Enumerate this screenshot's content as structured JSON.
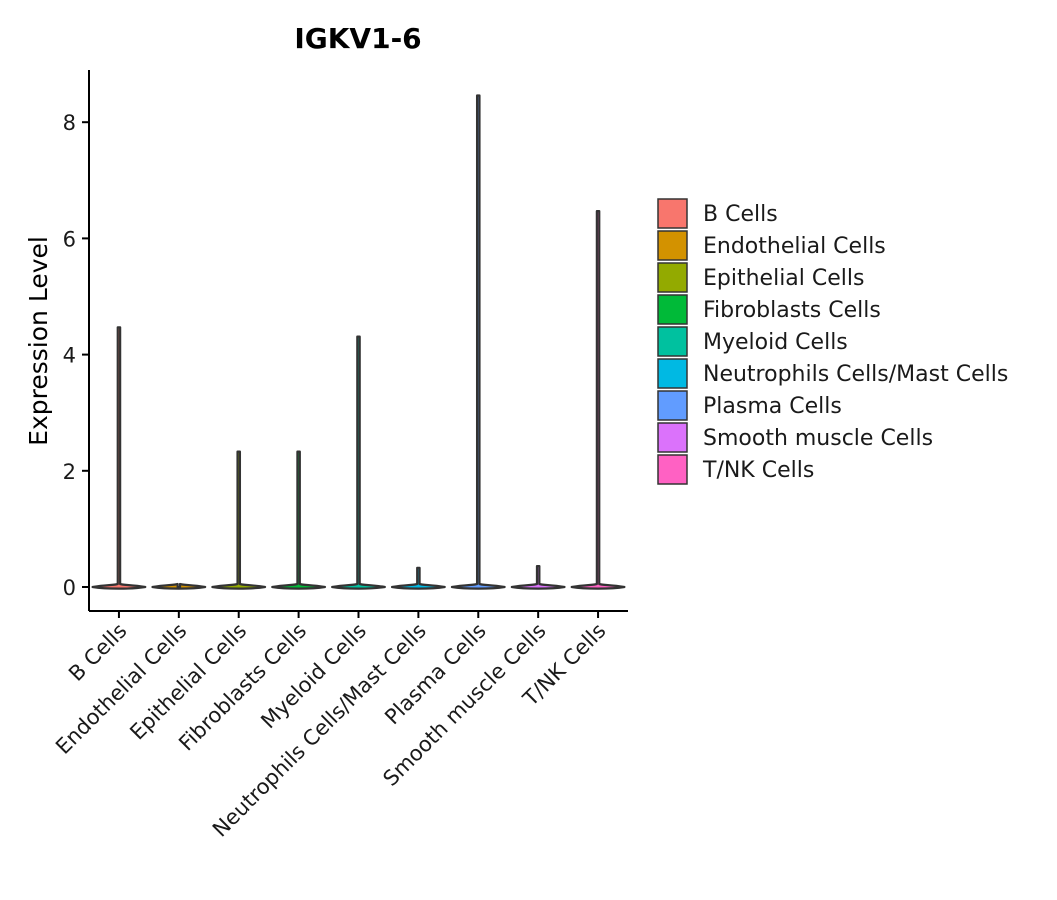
{
  "chart_data": {
    "type": "violin",
    "title": "IGKV1-6",
    "xlabel": "",
    "ylabel": "Expression Level",
    "ylim": [
      -0.4,
      8.9
    ],
    "yticks": [
      0,
      2,
      4,
      6,
      8
    ],
    "grid": false,
    "legend_position": "right",
    "categories": [
      "B Cells",
      "Endothelial Cells",
      "Epithelial Cells",
      "Fibroblasts Cells",
      "Myeloid Cells",
      "Neutrophils Cells/Mast Cells",
      "Plasma Cells",
      "Smooth muscle Cells",
      "T/NK Cells"
    ],
    "colors": [
      "#F8766D",
      "#D39200",
      "#93AA00",
      "#00BA38",
      "#00C19F",
      "#00B9E3",
      "#619CFF",
      "#DB72FB",
      "#FF61C3"
    ],
    "min_values": [
      0,
      0,
      0,
      0,
      0,
      0,
      0,
      0,
      0
    ],
    "max_values": [
      4.47,
      0.0,
      2.33,
      2.33,
      4.31,
      0.33,
      8.46,
      0.36,
      6.47
    ]
  }
}
